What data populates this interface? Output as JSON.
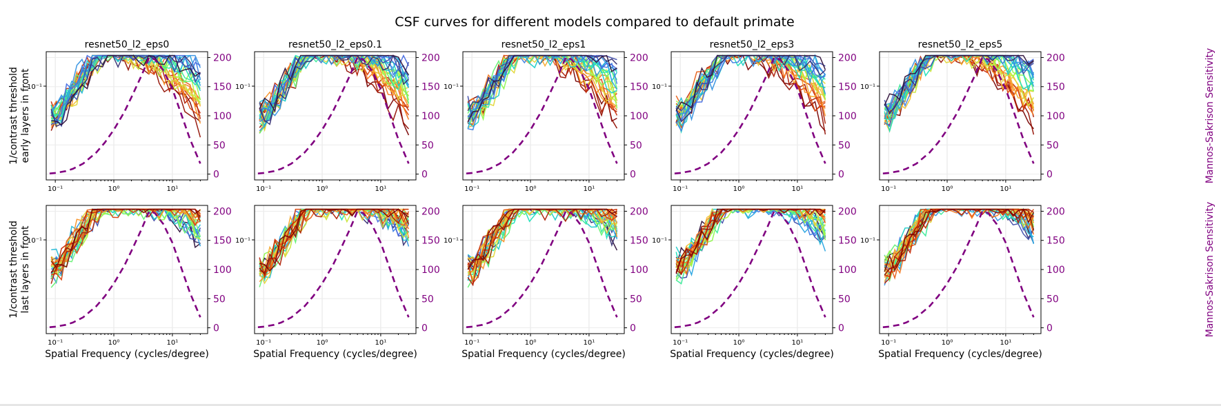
{
  "figure_title": "CSF curves for different models compared to default primate",
  "row_labels": [
    [
      "1/contrast threshold",
      "early layers in front"
    ],
    [
      "1/contrast threshold",
      "last layers in front"
    ]
  ],
  "secondary_axis_label": "Mannos-Sakrison Sensitivity",
  "xlabel": "Spatial Frequency (cycles/degree)",
  "panel_titles": [
    "resnet50_l2_eps0",
    "resnet50_l2_eps0.1",
    "resnet50_l2_eps1",
    "resnet50_l2_eps3",
    "resnet50_l2_eps5"
  ],
  "x_tick_labels": [
    "10⁻¹",
    "10⁰",
    "10¹"
  ],
  "y_tick_label": "10⁻¹",
  "right_tick_labels": [
    "0",
    "50",
    "100",
    "150",
    "200"
  ],
  "colors": {
    "reference": "#800080",
    "right_axis_text": "#800080"
  },
  "chart_data": {
    "type": "line",
    "grid": true,
    "x_scale": "log",
    "y_scale": "log",
    "xlim": [
      0.07,
      40
    ],
    "right_ylim": [
      -10,
      210
    ],
    "colormap": "turbo (layer depth)",
    "reference_curve": {
      "name": "Mannos-Sakrison",
      "style": "dashed",
      "x": [
        0.08,
        0.1,
        0.15,
        0.2,
        0.3,
        0.5,
        0.7,
        1,
        1.5,
        2,
        3,
        4,
        5,
        7,
        10,
        15,
        20,
        30
      ],
      "values": [
        1,
        2,
        5,
        9,
        18,
        37,
        54,
        76,
        106,
        132,
        170,
        200,
        197,
        178,
        146,
        96,
        60,
        18
      ]
    },
    "panels": [
      {
        "title": "resnet50_l2_eps0",
        "row": "early layers in front"
      },
      {
        "title": "resnet50_l2_eps0.1",
        "row": "early layers in front"
      },
      {
        "title": "resnet50_l2_eps1",
        "row": "early layers in front"
      },
      {
        "title": "resnet50_l2_eps3",
        "row": "early layers in front"
      },
      {
        "title": "resnet50_l2_eps5",
        "row": "early layers in front"
      },
      {
        "title": "resnet50_l2_eps0",
        "row": "last layers in front"
      },
      {
        "title": "resnet50_l2_eps0.1",
        "row": "last layers in front"
      },
      {
        "title": "resnet50_l2_eps1",
        "row": "last layers in front"
      },
      {
        "title": "resnet50_l2_eps3",
        "row": "last layers in front"
      },
      {
        "title": "resnet50_l2_eps5",
        "row": "last layers in front"
      }
    ]
  }
}
